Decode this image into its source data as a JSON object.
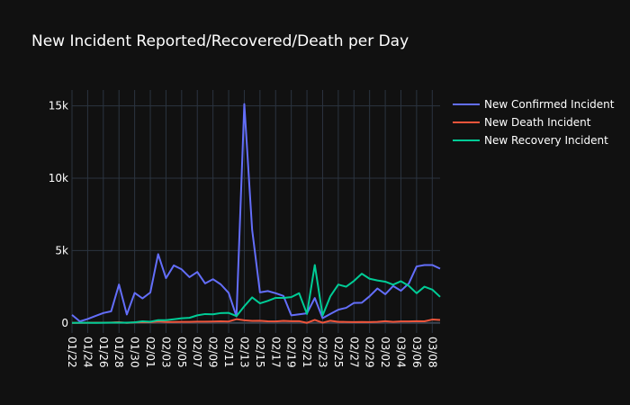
{
  "chart_data": {
    "type": "line",
    "title": "New Incident Reported/Recovered/Death per Day",
    "xlabel": "",
    "ylabel": "",
    "x": [
      "01/22",
      "01/23",
      "01/24",
      "01/25",
      "01/26",
      "01/27",
      "01/28",
      "01/29",
      "01/30",
      "01/31",
      "02/01",
      "02/02",
      "02/03",
      "02/04",
      "02/05",
      "02/06",
      "02/07",
      "02/08",
      "02/09",
      "02/10",
      "02/11",
      "02/12",
      "02/13",
      "02/14",
      "02/15",
      "02/16",
      "02/17",
      "02/18",
      "02/19",
      "02/20",
      "02/21",
      "02/22",
      "02/23",
      "02/24",
      "02/25",
      "02/26",
      "02/27",
      "02/28",
      "02/29",
      "03/01",
      "03/02",
      "03/03",
      "03/04",
      "03/05",
      "03/06",
      "03/07",
      "03/08",
      "03/09"
    ],
    "x_tick_labels": [
      "01/22",
      "01/24",
      "01/26",
      "01/28",
      "01/30",
      "02/01",
      "02/03",
      "02/05",
      "02/07",
      "02/09",
      "02/11",
      "02/13",
      "02/15",
      "02/17",
      "02/19",
      "02/21",
      "02/23",
      "02/25",
      "02/27",
      "02/29",
      "03/02",
      "03/04",
      "03/06",
      "03/08"
    ],
    "ylim": [
      -700,
      16100
    ],
    "y_ticks": [
      0,
      5000,
      10000,
      15000
    ],
    "y_tick_labels": [
      "0",
      "5k",
      "10k",
      "15k"
    ],
    "grid": true,
    "legend_position": "top-right",
    "series": [
      {
        "name": "New Confirmed Incident",
        "color": "#636efa",
        "values": [
          550,
          100,
          270,
          480,
          680,
          800,
          2650,
          580,
          2070,
          1690,
          2100,
          4750,
          3090,
          3970,
          3700,
          3160,
          3520,
          2730,
          3020,
          2660,
          2070,
          450,
          15130,
          6440,
          2110,
          2200,
          2050,
          1860,
          520,
          590,
          660,
          1720,
          330,
          620,
          910,
          1040,
          1380,
          1390,
          1840,
          2380,
          1980,
          2550,
          2220,
          2720,
          3900,
          4000,
          4000,
          3750
        ]
      },
      {
        "name": "New Death Incident",
        "color": "#ef553b",
        "values": [
          0,
          1,
          8,
          16,
          14,
          26,
          49,
          2,
          38,
          43,
          46,
          103,
          64,
          66,
          73,
          73,
          86,
          89,
          97,
          108,
          97,
          254,
          180,
          140,
          145,
          106,
          98,
          139,
          115,
          120,
          1,
          205,
          12,
          150,
          71,
          64,
          57,
          65,
          53,
          67,
          120,
          72,
          98,
          100,
          118,
          110,
          230,
          200
        ]
      },
      {
        "name": "New Recovery Incident",
        "color": "#00cc96",
        "values": [
          0,
          9,
          7,
          3,
          10,
          18,
          12,
          15,
          36,
          109,
          80,
          190,
          190,
          250,
          320,
          350,
          520,
          610,
          590,
          680,
          690,
          470,
          1150,
          1760,
          1350,
          1520,
          1730,
          1730,
          1780,
          2050,
          620,
          4000,
          510,
          1850,
          2650,
          2500,
          2900,
          3400,
          3050,
          2930,
          2850,
          2640,
          2880,
          2560,
          2050,
          2500,
          2300,
          1800
        ]
      }
    ]
  }
}
